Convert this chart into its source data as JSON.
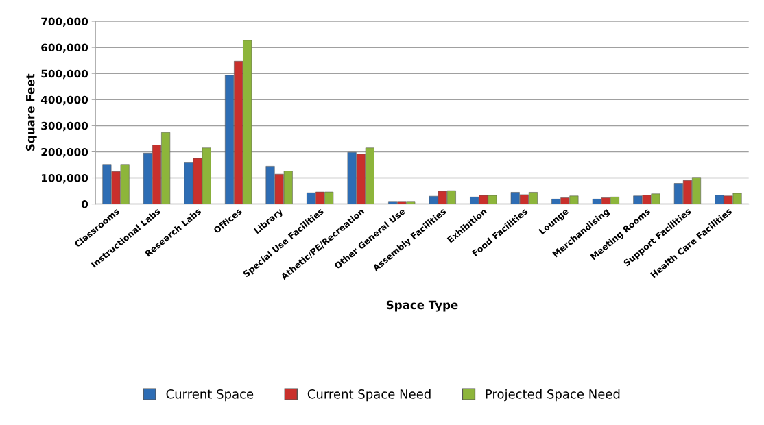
{
  "chart_data": {
    "type": "bar",
    "xlabel": "Space Type",
    "ylabel": "Square Feet",
    "categories": [
      "Classrooms",
      "Instructional Labs",
      "Research Labs",
      "Offices",
      "Library",
      "Special Use Facilities",
      "Athetic/PE/Recreation",
      "Other General Use",
      "Assembly Facilities",
      "Exhibition",
      "Food Facilities",
      "Lounge",
      "Merchandising",
      "Meeting Rooms",
      "Support Facilities",
      "Health Care Facilities"
    ],
    "series": [
      {
        "name": "Current Space",
        "color": "#2e6db4",
        "values": [
          152000,
          195000,
          158000,
          493000,
          145000,
          43000,
          198000,
          10000,
          30000,
          27000,
          45000,
          19000,
          19000,
          31000,
          79000,
          34000
        ]
      },
      {
        "name": "Current Space Need",
        "color": "#c9302c",
        "values": [
          124000,
          226000,
          175000,
          547000,
          114000,
          46000,
          191000,
          10000,
          49000,
          33000,
          36000,
          24000,
          24000,
          34000,
          90000,
          31000
        ]
      },
      {
        "name": "Projected Space Need",
        "color": "#8db53b",
        "values": [
          152000,
          274000,
          215000,
          627000,
          126000,
          46000,
          215000,
          10000,
          51000,
          33000,
          45000,
          31000,
          27000,
          39000,
          102000,
          41000
        ]
      }
    ],
    "ylim": [
      0,
      700000
    ],
    "yticks": [
      {
        "value": 0,
        "label": "0"
      },
      {
        "value": 100000,
        "label": "100,000"
      },
      {
        "value": 200000,
        "label": "200,000"
      },
      {
        "value": 300000,
        "label": "300,000"
      },
      {
        "value": 400000,
        "label": "400,000"
      },
      {
        "value": 500000,
        "label": "500,000"
      },
      {
        "value": 600000,
        "label": "600,000"
      },
      {
        "value": 700000,
        "label": "700,000"
      }
    ],
    "grid": "y",
    "legend": "bottom"
  }
}
